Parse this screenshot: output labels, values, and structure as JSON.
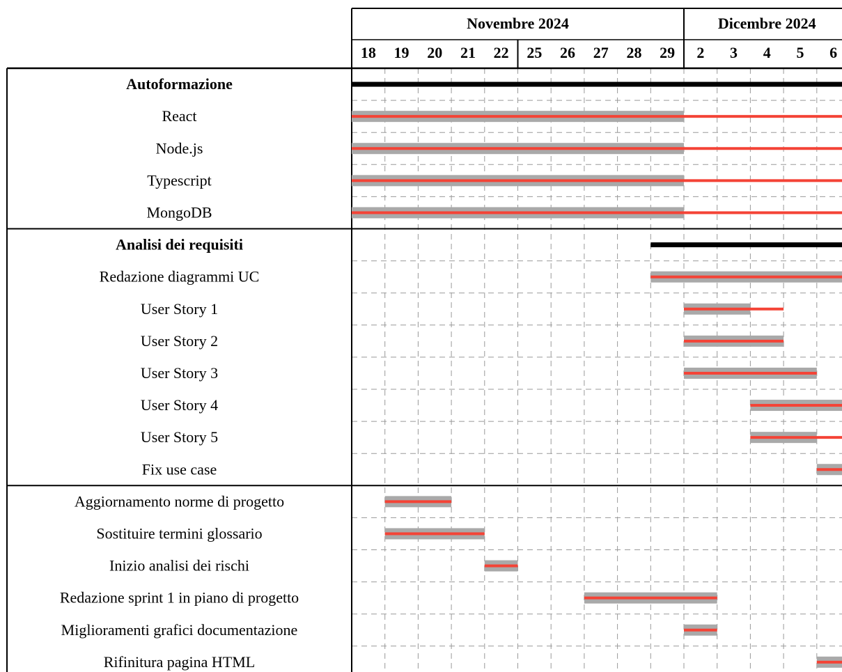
{
  "chart_data": {
    "type": "gantt",
    "categories": [
      "18",
      "19",
      "20",
      "21",
      "22",
      "25",
      "26",
      "27",
      "28",
      "29",
      "2",
      "3",
      "4",
      "5",
      "6"
    ],
    "months": [
      {
        "label": "Novembre 2024",
        "start": 0,
        "end": 10
      },
      {
        "label": "Dicembre 2024",
        "start": 10,
        "end": 15
      }
    ],
    "week_breaks": [
      5
    ],
    "planned_color": "#a9a9a9",
    "actual_color": "#f44336",
    "summary_color": "#000000",
    "groups": [
      {
        "title": "Autoformazione",
        "start": 0,
        "end": 15,
        "tasks": [
          {
            "name": "React",
            "planned": [
              0,
              10
            ],
            "actual": [
              0,
              15
            ]
          },
          {
            "name": "Node.js",
            "planned": [
              0,
              10
            ],
            "actual": [
              0,
              15
            ]
          },
          {
            "name": "Typescript",
            "planned": [
              0,
              10
            ],
            "actual": [
              0,
              15
            ]
          },
          {
            "name": "MongoDB",
            "planned": [
              0,
              10
            ],
            "actual": [
              0,
              15
            ]
          }
        ]
      },
      {
        "title": "Analisi dei requisiti",
        "start": 9,
        "end": 15,
        "tasks": [
          {
            "name": "Redazione diagrammi UC",
            "planned": [
              9,
              15
            ],
            "actual": [
              9,
              15
            ]
          },
          {
            "name": "User Story 1",
            "planned": [
              10,
              12
            ],
            "actual": [
              10,
              13
            ]
          },
          {
            "name": "User Story 2",
            "planned": [
              10,
              13
            ],
            "actual": [
              10,
              13
            ]
          },
          {
            "name": "User Story 3",
            "planned": [
              10,
              14
            ],
            "actual": [
              10,
              14
            ]
          },
          {
            "name": "User Story 4",
            "planned": [
              12,
              15
            ],
            "actual": [
              12,
              15
            ]
          },
          {
            "name": "User Story 5",
            "planned": [
              12,
              14
            ],
            "actual": [
              12,
              15
            ]
          },
          {
            "name": "Fix use case",
            "planned": [
              14,
              15
            ],
            "actual": [
              14,
              15
            ]
          }
        ]
      },
      {
        "tasks": [
          {
            "name": "Aggiornamento norme di progetto",
            "planned": [
              1,
              3
            ],
            "actual": [
              1,
              3
            ]
          },
          {
            "name": "Sostituire termini glossario",
            "planned": [
              1,
              4
            ],
            "actual": [
              1,
              4
            ]
          },
          {
            "name": "Inizio analisi dei rischi",
            "planned": [
              4,
              5
            ],
            "actual": [
              4,
              5
            ]
          },
          {
            "name": "Redazione sprint 1 in piano di progetto",
            "planned": [
              7,
              11
            ],
            "actual": [
              7,
              11
            ]
          },
          {
            "name": "Miglioramenti grafici documentazione",
            "planned": [
              10,
              11
            ],
            "actual": [
              10,
              11
            ]
          },
          {
            "name": "Rifinitura pagina HTML",
            "planned": [
              14,
              15
            ],
            "actual": [
              14,
              15
            ]
          }
        ]
      }
    ]
  }
}
